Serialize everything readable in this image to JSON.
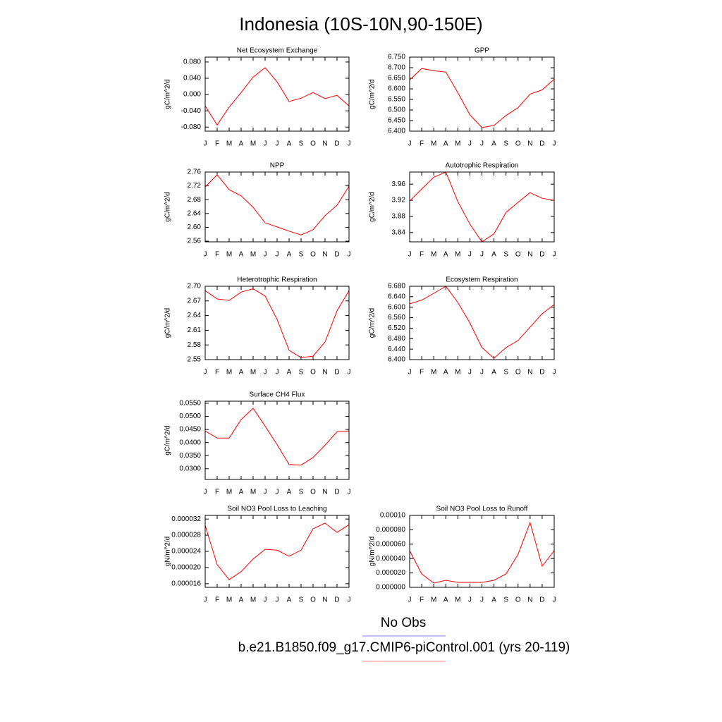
{
  "title": "Indonesia (10S-10N,90-150E)",
  "legend": [
    {
      "name": "No Obs",
      "color": "#8080ff"
    },
    {
      "name": "b.e21.B1850.f09_g17.CMIP6-piControl.001 (yrs 20-119)",
      "color": "#ff8080"
    }
  ],
  "chart_data": [
    {
      "type": "line",
      "title": "Net Ecosystem Exchange",
      "ylabel": "gC/m^2/d",
      "color": "#ff0000",
      "categories": [
        "J",
        "F",
        "M",
        "A",
        "M",
        "J",
        "J",
        "A",
        "S",
        "O",
        "N",
        "D",
        "J"
      ],
      "values": [
        -0.028,
        -0.075,
        -0.031,
        0.005,
        0.043,
        0.066,
        0.031,
        -0.017,
        -0.009,
        0.005,
        -0.01,
        -0.002,
        -0.028
      ],
      "ylim": [
        -0.09,
        0.092
      ],
      "yticks": [
        {
          "value": -0.08,
          "label": "-0.080"
        },
        {
          "value": -0.04,
          "label": "-0.040"
        },
        {
          "value": 0,
          "label": "0.000"
        },
        {
          "value": 0.04,
          "label": "0.040"
        },
        {
          "value": 0.08,
          "label": "0.080"
        }
      ]
    },
    {
      "type": "line",
      "title": "GPP",
      "ylabel": "gC/m^2/d",
      "color": "#ff0000",
      "categories": [
        "J",
        "F",
        "M",
        "A",
        "M",
        "J",
        "J",
        "A",
        "S",
        "O",
        "N",
        "D",
        "J"
      ],
      "values": [
        6.642,
        6.696,
        6.686,
        6.679,
        6.582,
        6.477,
        6.417,
        6.427,
        6.474,
        6.511,
        6.575,
        6.595,
        6.646
      ],
      "ylim": [
        6.4,
        6.75
      ],
      "yticks": [
        {
          "value": 6.4,
          "label": "6.400"
        },
        {
          "value": 6.45,
          "label": "6.450"
        },
        {
          "value": 6.5,
          "label": "6.500"
        },
        {
          "value": 6.55,
          "label": "6.550"
        },
        {
          "value": 6.6,
          "label": "6.600"
        },
        {
          "value": 6.65,
          "label": "6.650"
        },
        {
          "value": 6.7,
          "label": "6.700"
        },
        {
          "value": 6.75,
          "label": "6.750"
        }
      ]
    },
    {
      "type": "line",
      "title": "NPP",
      "ylabel": "gC/m^2/d",
      "color": "#ff0000",
      "categories": [
        "J",
        "F",
        "M",
        "A",
        "M",
        "J",
        "J",
        "A",
        "S",
        "O",
        "N",
        "D",
        "J"
      ],
      "values": [
        2.717,
        2.752,
        2.709,
        2.691,
        2.658,
        2.613,
        2.601,
        2.589,
        2.578,
        2.593,
        2.634,
        2.664,
        2.719
      ],
      "ylim": [
        2.558,
        2.76
      ],
      "yticks": [
        2.56,
        {
          "value": 2.6,
          "label": "2.60"
        },
        2.64,
        2.68,
        2.72,
        2.76
      ]
    },
    {
      "type": "line",
      "title": "Autotrophic Respiration",
      "ylabel": "gC/m^2/d",
      "color": "#ff0000",
      "categories": [
        "J",
        "F",
        "M",
        "A",
        "M",
        "J",
        "J",
        "A",
        "S",
        "O",
        "N",
        "D",
        "J"
      ],
      "values": [
        3.918,
        3.948,
        3.977,
        3.99,
        3.917,
        3.861,
        3.817,
        3.837,
        3.89,
        3.915,
        3.939,
        3.925,
        3.92
      ],
      "ylim": [
        3.817,
        3.99
      ],
      "yticks": [
        3.84,
        3.88,
        3.92,
        3.96
      ]
    },
    {
      "type": "line",
      "title": "Heterotrophic Respiration",
      "ylabel": "gC/m^2/d",
      "color": "#ff0000",
      "categories": [
        "J",
        "F",
        "M",
        "A",
        "M",
        "J",
        "J",
        "A",
        "S",
        "O",
        "N",
        "D",
        "J"
      ],
      "values": [
        2.691,
        2.674,
        2.671,
        2.688,
        2.695,
        2.68,
        2.632,
        2.569,
        2.554,
        2.557,
        2.586,
        2.65,
        2.691
      ],
      "ylim": [
        2.55,
        2.7
      ],
      "yticks": [
        2.55,
        2.58,
        2.61,
        2.64,
        2.67,
        {
          "value": 2.7,
          "label": "2.70"
        }
      ]
    },
    {
      "type": "line",
      "title": "Ecosystem Respiration",
      "ylabel": "gC/m^2/d",
      "color": "#ff0000",
      "categories": [
        "J",
        "F",
        "M",
        "A",
        "M",
        "J",
        "J",
        "A",
        "S",
        "O",
        "N",
        "D",
        "J"
      ],
      "values": [
        6.613,
        6.627,
        6.653,
        6.68,
        6.618,
        6.54,
        6.446,
        6.405,
        6.446,
        6.473,
        6.524,
        6.575,
        6.61
      ],
      "ylim": [
        6.4,
        6.68
      ],
      "yticks": [
        {
          "value": 6.4,
          "label": "6.400"
        },
        {
          "value": 6.44,
          "label": "6.440"
        },
        {
          "value": 6.48,
          "label": "6.480"
        },
        {
          "value": 6.52,
          "label": "6.520"
        },
        {
          "value": 6.56,
          "label": "6.560"
        },
        {
          "value": 6.6,
          "label": "6.600"
        },
        {
          "value": 6.64,
          "label": "6.640"
        },
        {
          "value": 6.68,
          "label": "6.680"
        }
      ]
    },
    {
      "type": "line",
      "title": "Surface CH4 Flux",
      "ylabel": "gC/m^2/d",
      "color": "#ff0000",
      "categories": [
        "J",
        "F",
        "M",
        "A",
        "M",
        "J",
        "J",
        "A",
        "S",
        "O",
        "N",
        "D",
        "J"
      ],
      "values": [
        0.0444,
        0.0417,
        0.0417,
        0.0488,
        0.0531,
        0.0463,
        0.0392,
        0.0316,
        0.0314,
        0.0343,
        0.039,
        0.0441,
        0.0444
      ],
      "ylim": [
        0.0259,
        0.0558
      ],
      "yticks": [
        {
          "value": 0.03,
          "label": "0.0300"
        },
        {
          "value": 0.035,
          "label": "0.0350"
        },
        {
          "value": 0.04,
          "label": "0.0400"
        },
        {
          "value": 0.045,
          "label": "0.0450"
        },
        {
          "value": 0.05,
          "label": "0.0500"
        },
        {
          "value": 0.055,
          "label": "0.0550"
        }
      ]
    },
    {
      "type": "line",
      "title": "Soil NO3 Pool Loss to Leaching",
      "ylabel": "gN/m^2/d",
      "color": "#ff0000",
      "categories": [
        "J",
        "F",
        "M",
        "A",
        "M",
        "J",
        "J",
        "A",
        "S",
        "O",
        "N",
        "D",
        "J"
      ],
      "values": [
        3.04e-05,
        2.07e-05,
        1.7e-05,
        1.9e-05,
        2.21e-05,
        2.45e-05,
        2.43e-05,
        2.28e-05,
        2.43e-05,
        2.96e-05,
        3.1e-05,
        2.87e-05,
        3.06e-05
      ],
      "ylim": [
        1.51e-05,
        3.29e-05
      ],
      "yticks": [
        {
          "value": 1.6e-05,
          "label": "0.000016"
        },
        {
          "value": 2e-05,
          "label": "0.000020"
        },
        {
          "value": 2.4e-05,
          "label": "0.000024"
        },
        {
          "value": 2.8e-05,
          "label": "0.000028"
        },
        {
          "value": 3.2e-05,
          "label": "0.000032"
        }
      ]
    },
    {
      "type": "line",
      "title": "Soil NO3 Pool Loss to Runoff",
      "ylabel": "gN/m^2/d",
      "color": "#ff0000",
      "categories": [
        "J",
        "F",
        "M",
        "A",
        "M",
        "J",
        "J",
        "A",
        "S",
        "O",
        "N",
        "D",
        "J"
      ],
      "values": [
        5.1e-05,
        1.86e-05,
        5.9e-06,
        9.8e-06,
        6.9e-06,
        6.9e-06,
        6.9e-06,
        9.8e-06,
        1.86e-05,
        4.6e-05,
        9e-05,
        2.94e-05,
        5.1e-05
      ],
      "ylim": [
        0,
        0.0001
      ],
      "yticks": [
        {
          "value": 0,
          "label": "0.000000"
        },
        {
          "value": 2e-05,
          "label": "0.000020"
        },
        {
          "value": 4e-05,
          "label": "0.000040"
        },
        {
          "value": 6e-05,
          "label": "0.000060"
        },
        {
          "value": 8e-05,
          "label": "0.000080"
        },
        {
          "value": 0.0001,
          "label": "0.00010"
        }
      ]
    }
  ]
}
